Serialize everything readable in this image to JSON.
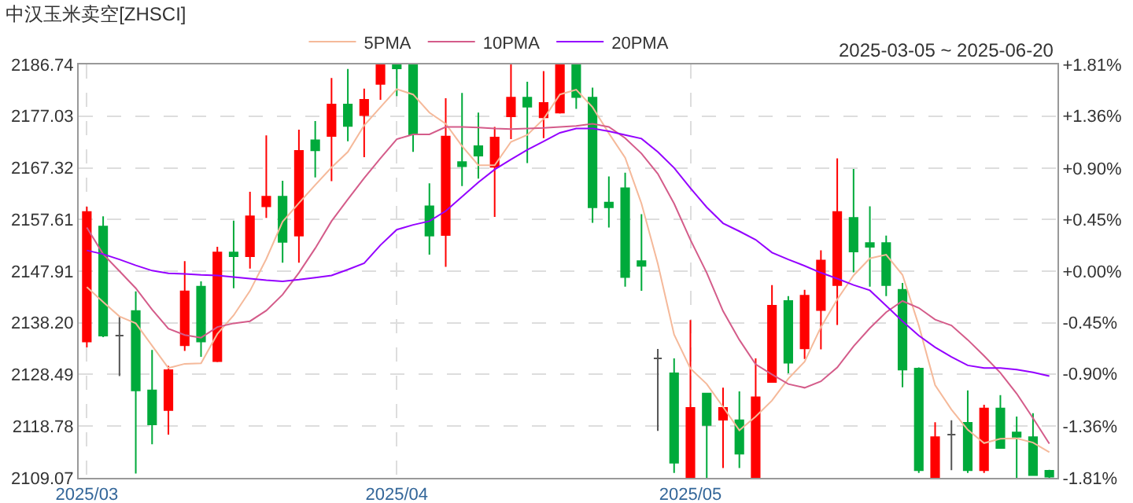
{
  "chart_data": {
    "type": "candlestick",
    "title": "中汉玉米卖空[ZHSCI]",
    "subtitle": "2025-03-05 ~ 2025-06-20",
    "categories": [
      "2025/03",
      null,
      null,
      null,
      null,
      null,
      null,
      null,
      null,
      null,
      null,
      null,
      null,
      null,
      null,
      null,
      null,
      null,
      null,
      "2025/04",
      null,
      null,
      null,
      null,
      null,
      null,
      null,
      null,
      null,
      null,
      null,
      null,
      null,
      null,
      null,
      null,
      null,
      "2025/05",
      null,
      null,
      null,
      null,
      null,
      null,
      null,
      null,
      null,
      null,
      null,
      null,
      null,
      null,
      null,
      null,
      null,
      null,
      null,
      null,
      null,
      null
    ],
    "ohlc": [
      [
        2134.7,
        2160.0,
        2133.6,
        2159.0
      ],
      [
        2156.3,
        2158.2,
        2135.5,
        2135.8
      ],
      [
        2135.8,
        2139.3,
        2128.2,
        2135.8
      ],
      [
        2140.4,
        2144.1,
        2109.9,
        2125.5
      ],
      [
        2125.5,
        2133.1,
        2115.4,
        2119.1
      ],
      [
        2121.8,
        2130.1,
        2117.2,
        2129.3
      ],
      [
        2134.0,
        2149.8,
        2132.9,
        2144.1
      ],
      [
        2145.0,
        2146.0,
        2131.8,
        2134.7
      ],
      [
        2131.0,
        2152.5,
        2130.8,
        2151.4
      ],
      [
        2151.4,
        2157.4,
        2144.7,
        2150.7
      ],
      [
        2150.7,
        2162.8,
        2148.4,
        2158.2
      ],
      [
        2160.1,
        2173.4,
        2157.9,
        2161.9
      ],
      [
        2161.9,
        2164.9,
        2149.5,
        2153.4
      ],
      [
        2154.6,
        2174.5,
        2149.5,
        2170.5
      ],
      [
        2172.5,
        2176.1,
        2165.5,
        2170.6
      ],
      [
        2173.3,
        2184.2,
        2164.8,
        2179.2
      ],
      [
        2179.2,
        2185.9,
        2172.3,
        2175.2
      ],
      [
        2177.2,
        2182.2,
        2169.3,
        2180.1
      ],
      [
        2183.1,
        2186.74,
        2180.1,
        2186.74
      ],
      [
        2186.74,
        2186.74,
        2180.8,
        2186.0
      ],
      [
        2186.74,
        2186.74,
        2170.3,
        2173.6
      ],
      [
        2160.1,
        2164.4,
        2151.0,
        2154.6
      ],
      [
        2154.7,
        2180.4,
        2148.7,
        2173.2
      ],
      [
        2168.4,
        2181.4,
        2163.9,
        2167.6
      ],
      [
        2171.4,
        2177.7,
        2165.3,
        2169.6
      ],
      [
        2167.5,
        2175.0,
        2158.1,
        2173.0
      ],
      [
        2177.0,
        2186.74,
        2172.7,
        2180.5
      ],
      [
        2180.5,
        2183.5,
        2168.2,
        2178.8
      ],
      [
        2176.8,
        2185.5,
        2172.9,
        2179.5
      ],
      [
        2177.7,
        2186.74,
        2177.5,
        2186.74
      ],
      [
        2186.74,
        2186.74,
        2178.4,
        2180.6
      ],
      [
        2180.5,
        2182.4,
        2157.0,
        2159.9
      ],
      [
        2160.8,
        2165.7,
        2156.1,
        2159.9
      ],
      [
        2163.5,
        2166.4,
        2145.0,
        2146.8
      ],
      [
        2149.8,
        2158.6,
        2144.2,
        2148.9
      ],
      [
        2131.5,
        2133.3,
        2117.9,
        2131.5
      ],
      [
        2128.7,
        2131.5,
        2110.0,
        2111.9
      ],
      [
        2109.07,
        2138.7,
        2109.07,
        2122.2
      ],
      [
        2124.9,
        2125.0,
        2109.07,
        2119.0
      ],
      [
        2120.0,
        2126.0,
        2110.9,
        2122.2
      ],
      [
        2119.9,
        2125.3,
        2110.9,
        2113.6
      ],
      [
        2109.07,
        2131.5,
        2109.07,
        2124.2
      ],
      [
        2127.1,
        2145.3,
        2127.0,
        2141.4
      ],
      [
        2142.3,
        2143.2,
        2128.7,
        2130.7
      ],
      [
        2133.4,
        2144.4,
        2131.4,
        2143.3
      ],
      [
        2140.6,
        2151.8,
        2133.2,
        2149.9
      ],
      [
        2145.3,
        2169.1,
        2137.8,
        2159.0
      ],
      [
        2157.9,
        2167.1,
        2147.7,
        2151.6
      ],
      [
        2153.2,
        2160.1,
        2145.0,
        2152.5
      ],
      [
        2153.2,
        2154.6,
        2143.2,
        2145.3
      ],
      [
        2144.4,
        2145.7,
        2126.1,
        2129.4
      ],
      [
        2129.6,
        2129.8,
        2110.0,
        2110.5
      ],
      [
        2109.07,
        2119.5,
        2109.07,
        2116.7
      ],
      [
        2117.2,
        2119.9,
        2110.5,
        2117.2
      ],
      [
        2119.4,
        2125.5,
        2110.0,
        2110.5
      ],
      [
        2110.5,
        2122.8,
        2110.0,
        2122.1
      ],
      [
        2122.1,
        2124.6,
        2114.7,
        2114.7
      ],
      [
        2117.6,
        2120.6,
        2109.07,
        2116.8
      ],
      [
        2116.7,
        2121.2,
        2109.6,
        2109.6
      ],
      [
        2110.4,
        2110.6,
        2109.07,
        2109.3
      ]
    ],
    "colors": [
      "#ff0000",
      "#00aa3b",
      "#555555",
      "#00aa3b",
      "#00aa3b",
      "#ff0000",
      "#ff0000",
      "#00aa3b",
      "#ff0000",
      "#00aa3b",
      "#ff0000",
      "#ff0000",
      "#00aa3b",
      "#ff0000",
      "#00aa3b",
      "#ff0000",
      "#00aa3b",
      "#ff0000",
      "#ff0000",
      "#00aa3b",
      "#00aa3b",
      "#00aa3b",
      "#ff0000",
      "#00aa3b",
      "#00aa3b",
      "#ff0000",
      "#ff0000",
      "#00aa3b",
      "#ff0000",
      "#ff0000",
      "#00aa3b",
      "#00aa3b",
      "#00aa3b",
      "#00aa3b",
      "#00aa3b",
      "#555555",
      "#00aa3b",
      "#ff0000",
      "#00aa3b",
      "#ff0000",
      "#00aa3b",
      "#ff0000",
      "#ff0000",
      "#00aa3b",
      "#ff0000",
      "#ff0000",
      "#ff0000",
      "#00aa3b",
      "#00aa3b",
      "#00aa3b",
      "#00aa3b",
      "#00aa3b",
      "#ff0000",
      "#555555",
      "#00aa3b",
      "#ff0000",
      "#00aa3b",
      "#00aa3b",
      "#00aa3b",
      "#00aa3b"
    ],
    "series": [
      {
        "name": "5PMA",
        "type": "line",
        "color": "#f5b99a",
        "values": [
          2144.9,
          2142.1,
          2139.4,
          2138.1,
          2133.9,
          2129.7,
          2130.5,
          2130.6,
          2136.1,
          2139.6,
          2144.2,
          2150.2,
          2157.2,
          2160.7,
          2164.1,
          2167.4,
          2170.3,
          2175.3,
          2178.7,
          2182.1,
          2181.1,
          2177.7,
          2175.6,
          2171.4,
          2167.8,
          2167.8,
          2172.2,
          2173.5,
          2176.5,
          2181.1,
          2182.0,
          2178.7,
          2173.8,
          2169.2,
          2160.6,
          2149.3,
          2136.0,
          2129.6,
          2126.7,
          2122.4,
          2118.0,
          2120.6,
          2123.6,
          2127.7,
          2130.9,
          2137.4,
          2142.6,
          2147.1,
          2150.3,
          2151.0,
          2147.2,
          2137.7,
          2126.5,
          2121.9,
          2118.1,
          2115.6,
          2116.4,
          2116.5,
          2115.7,
          2113.9
        ]
      },
      {
        "name": "10PMA",
        "type": "line",
        "color": "#d45c8a",
        "values": [
          2156.1,
          2151.1,
          2147.9,
          2144.7,
          2140.7,
          2137.1,
          2135.9,
          2135.4,
          2137.4,
          2138.1,
          2138.5,
          2140.5,
          2143.5,
          2147.6,
          2152.2,
          2157.3,
          2161.4,
          2165.4,
          2169.1,
          2172.7,
          2173.6,
          2173.6,
          2175.0,
          2175.0,
          2174.9,
          2174.7,
          2174.6,
          2174.7,
          2174.8,
          2175.0,
          2175.2,
          2175.6,
          2175.0,
          2172.9,
          2170.0,
          2166.2,
          2160.6,
          2153.8,
          2147.6,
          2140.4,
          2135.0,
          2130.4,
          2128.5,
          2126.7,
          2126.0,
          2127.2,
          2129.8,
          2133.8,
          2137.2,
          2140.2,
          2142.3,
          2141.0,
          2138.8,
          2137.7,
          2135.0,
          2132.0,
          2128.8,
          2124.9,
          2120.3,
          2115.5
        ]
      },
      {
        "name": "20PMA",
        "type": "line",
        "color": "#9400ff",
        "values": [
          2151.8,
          2151.1,
          2150.1,
          2149.0,
          2148.0,
          2147.5,
          2147.4,
          2147.2,
          2147.1,
          2146.8,
          2146.5,
          2146.2,
          2146.0,
          2146.3,
          2146.7,
          2147.1,
          2148.2,
          2149.4,
          2152.8,
          2155.7,
          2156.6,
          2157.3,
          2159.2,
          2161.9,
          2164.6,
          2167.0,
          2168.9,
          2170.7,
          2172.3,
          2173.9,
          2174.7,
          2174.7,
          2174.2,
          2173.5,
          2172.8,
          2170.3,
          2167.3,
          2163.5,
          2159.9,
          2156.9,
          2155.4,
          2153.8,
          2151.4,
          2150.1,
          2148.9,
          2147.6,
          2146.5,
          2145.3,
          2144.3,
          2141.4,
          2138.5,
          2135.8,
          2133.6,
          2131.8,
          2130.2,
          2129.7,
          2129.7,
          2129.4,
          2128.9,
          2128.2
        ]
      }
    ],
    "ylim": [
      2109.07,
      2186.74
    ],
    "yticks": [
      2109.07,
      2118.78,
      2128.49,
      {
        "value": 2138.2,
        "label": "2138.20"
      },
      2147.91,
      2157.61,
      2167.32,
      2177.03,
      2186.74
    ],
    "y2lim": [
      -1.81,
      1.81
    ],
    "y2ticks": [
      {
        "value": -1.81,
        "label": "-1.81%"
      },
      {
        "value": -1.36,
        "label": "-1.36%"
      },
      {
        "value": -0.9,
        "label": "-0.90%"
      },
      {
        "value": -0.45,
        "label": "-0.45%"
      },
      {
        "value": 0,
        "label": "+0.00%"
      },
      {
        "value": 0.45,
        "label": "+0.45%"
      },
      {
        "value": 0.9,
        "label": "+0.90%"
      },
      {
        "value": 1.36,
        "label": "+1.36%"
      },
      {
        "value": 1.81,
        "label": "+1.81%"
      }
    ],
    "grid": true,
    "legend": "top"
  }
}
